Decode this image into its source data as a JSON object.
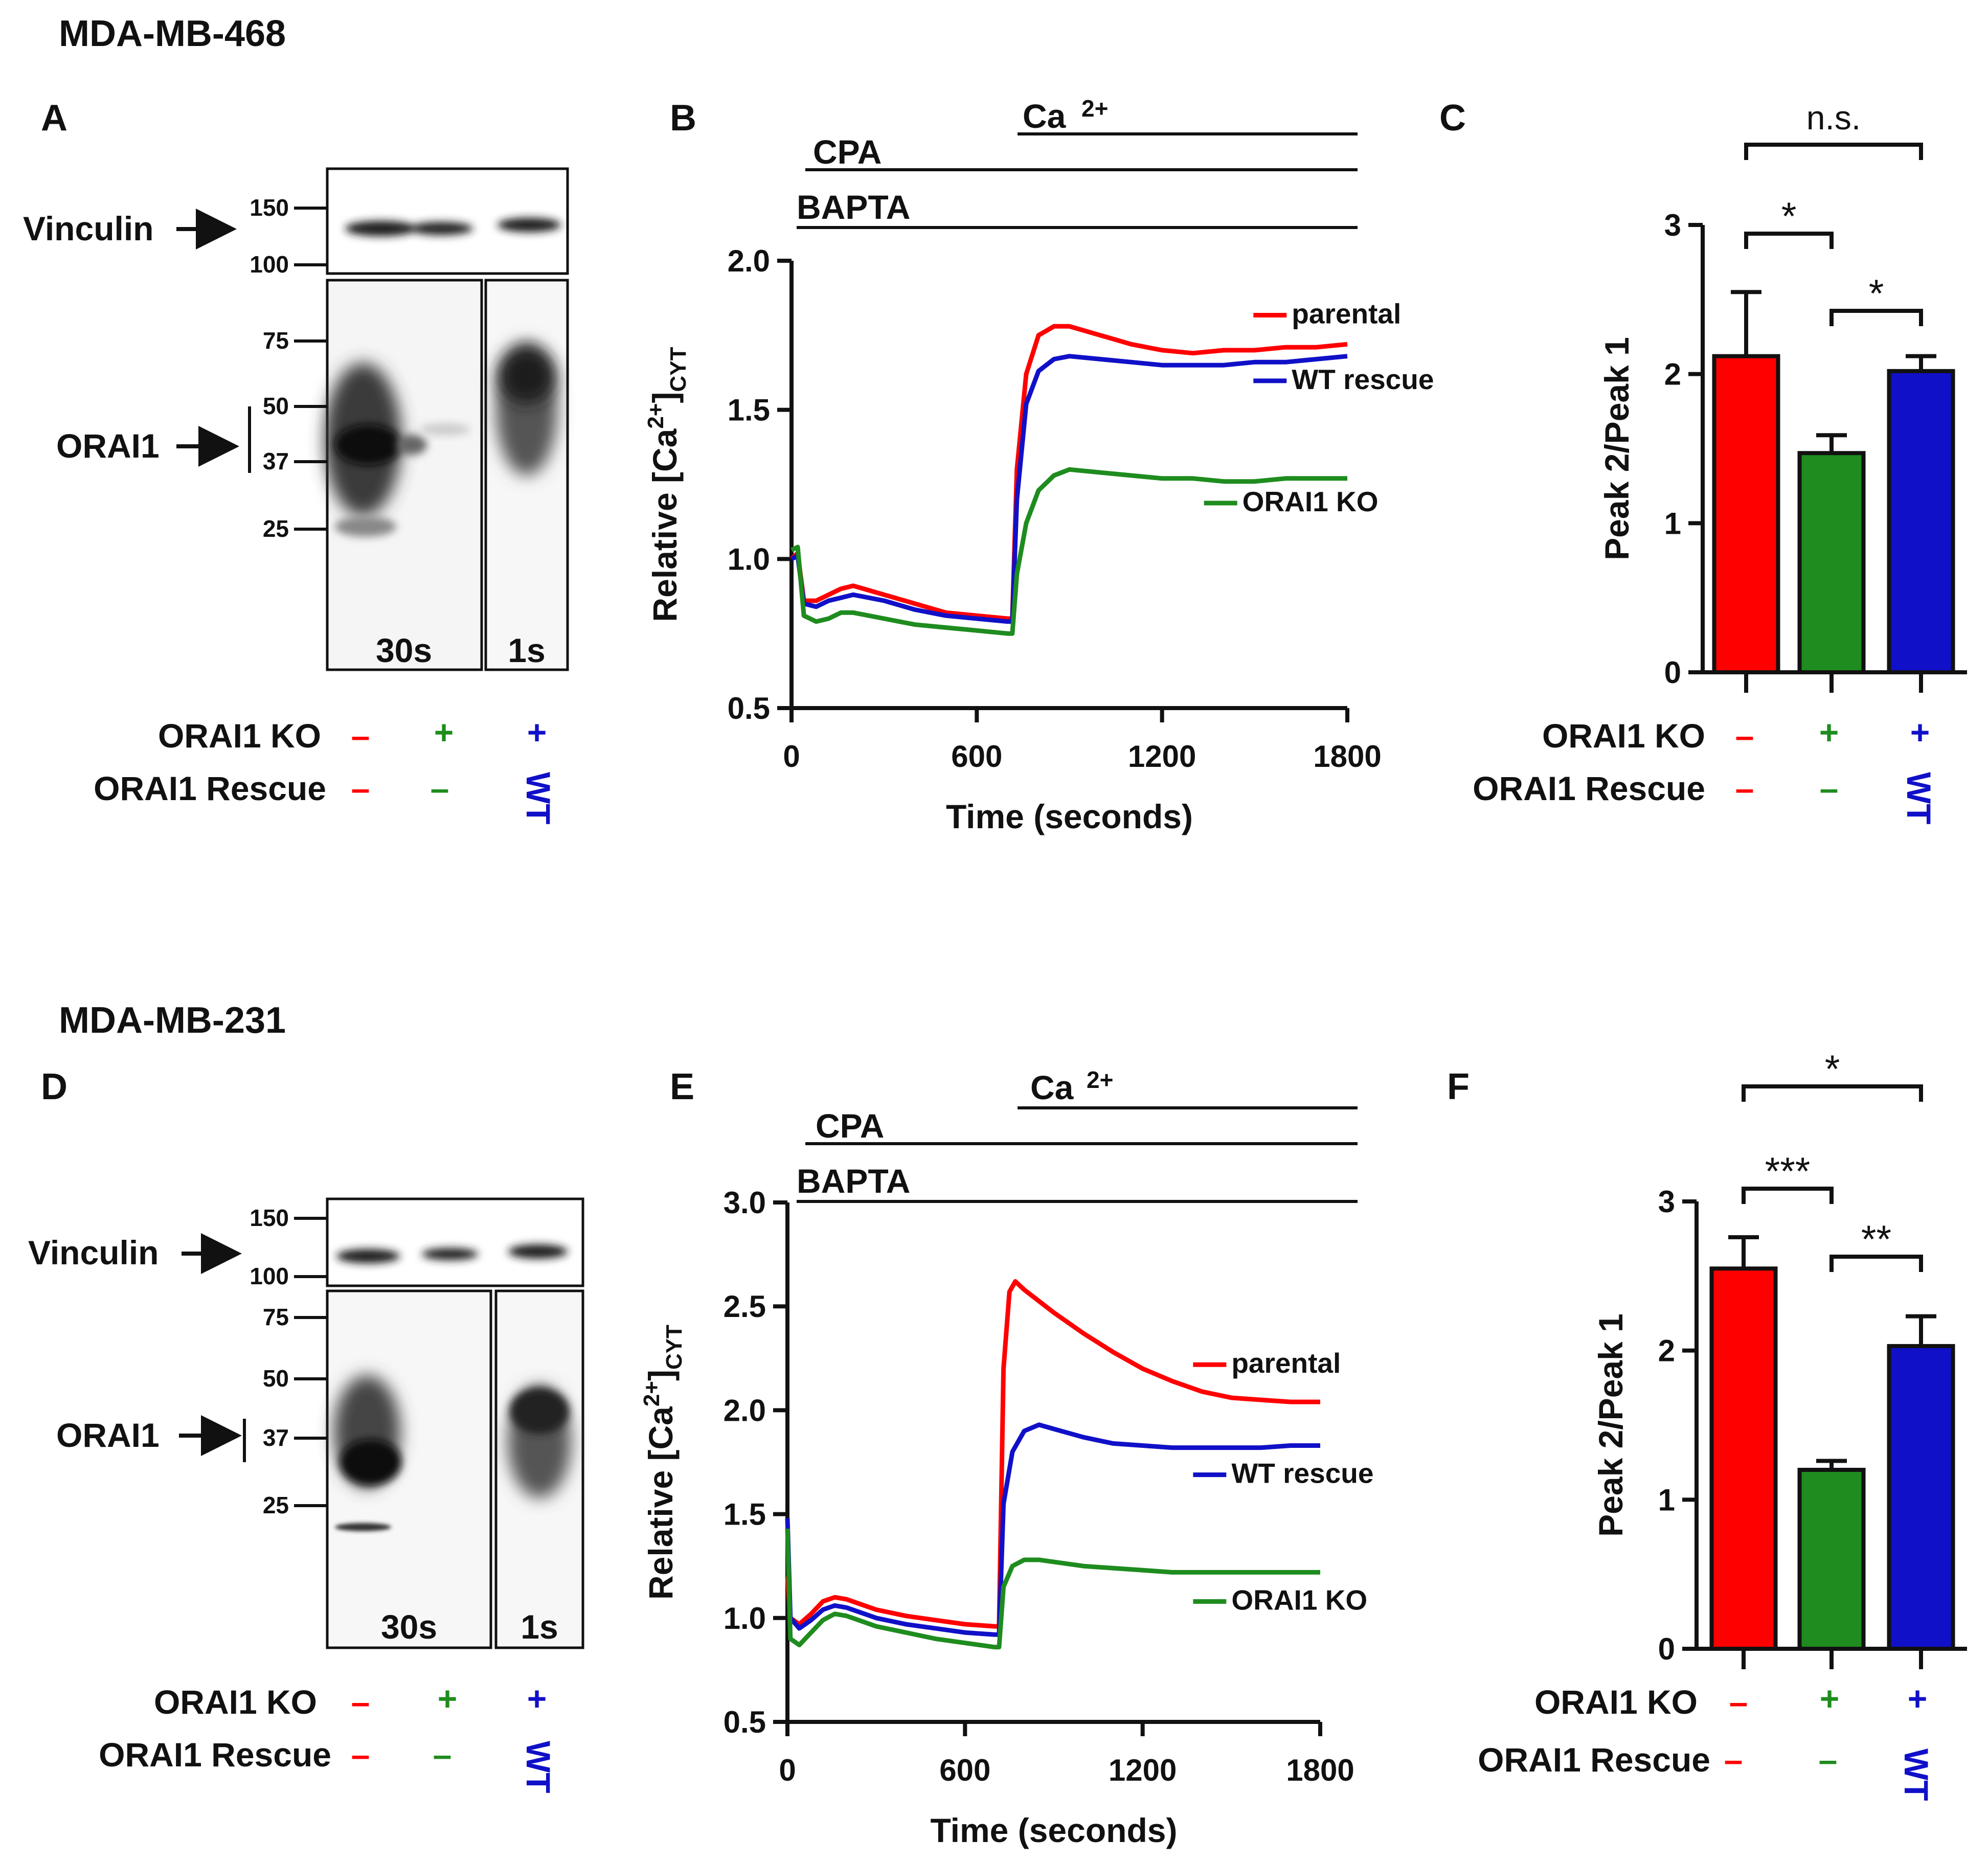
{
  "panels": {
    "top": {
      "cell_line": "MDA-MB-468",
      "blot": {
        "letter": "A",
        "proteins": [
          "Vinculin",
          "ORAI1"
        ],
        "vinculin_mw": [
          "150",
          "100"
        ],
        "orai1_mw": [
          "75",
          "50",
          "37",
          "25"
        ],
        "exposures": [
          "30s",
          "1s"
        ]
      },
      "trace": {
        "letter": "B",
        "bars": [
          "Ca",
          "CPA",
          "BAPTA"
        ],
        "ca_sup": "2+"
      },
      "bars": {
        "letter": "C"
      }
    },
    "bottom": {
      "cell_line": "MDA-MB-231",
      "blot": {
        "letter": "D",
        "proteins": [
          "Vinculin",
          "ORAI1"
        ],
        "vinculin_mw": [
          "150",
          "100"
        ],
        "orai1_mw": [
          "75",
          "50",
          "37",
          "25"
        ],
        "exposures": [
          "30s",
          "1s"
        ]
      },
      "trace": {
        "letter": "E",
        "bars": [
          "Ca",
          "CPA",
          "BAPTA"
        ],
        "ca_sup": "2+"
      },
      "bars": {
        "letter": "F"
      }
    }
  },
  "conditions": {
    "ko_label": "ORAI1 KO",
    "rescue_label": "ORAI1 Rescue",
    "ko_signs": [
      "–",
      "+",
      "+"
    ],
    "rescue_signs": [
      "–",
      "–",
      "WT"
    ]
  },
  "colors": {
    "parental": "#ff0000",
    "ko": "#1e8c1e",
    "wt": "#1010c8"
  },
  "chart_data": [
    {
      "id": "B",
      "type": "line",
      "xlabel": "Time (seconds)",
      "ylabel": "Relative [Ca2+]CYT",
      "ylabel_parts": [
        "Relative [Ca",
        "2+",
        "]",
        "CYT"
      ],
      "x_ticks": [
        "0",
        "600",
        "1200",
        "1800"
      ],
      "y_ticks": [
        "0.5",
        "1.0",
        "1.5",
        "2.0"
      ],
      "xlim": [
        0,
        1800
      ],
      "ylim": [
        0.5,
        2.0
      ],
      "series": [
        {
          "name": "parental",
          "color": "#ff0000",
          "label_at": [
            1620,
            1.79
          ],
          "points": [
            [
              0,
              1.0
            ],
            [
              20,
              1.02
            ],
            [
              40,
              0.86
            ],
            [
              80,
              0.86
            ],
            [
              120,
              0.88
            ],
            [
              160,
              0.9
            ],
            [
              200,
              0.91
            ],
            [
              300,
              0.88
            ],
            [
              400,
              0.85
            ],
            [
              500,
              0.82
            ],
            [
              600,
              0.81
            ],
            [
              700,
              0.8
            ],
            [
              715,
              0.8
            ],
            [
              730,
              1.3
            ],
            [
              760,
              1.62
            ],
            [
              800,
              1.75
            ],
            [
              850,
              1.78
            ],
            [
              900,
              1.78
            ],
            [
              1000,
              1.75
            ],
            [
              1100,
              1.72
            ],
            [
              1200,
              1.7
            ],
            [
              1300,
              1.69
            ],
            [
              1400,
              1.7
            ],
            [
              1500,
              1.7
            ],
            [
              1600,
              1.71
            ],
            [
              1700,
              1.71
            ],
            [
              1800,
              1.72
            ]
          ]
        },
        {
          "name": "WT rescue",
          "color": "#1010c8",
          "label_at": [
            1620,
            1.57
          ],
          "points": [
            [
              0,
              1.0
            ],
            [
              20,
              1.01
            ],
            [
              40,
              0.85
            ],
            [
              80,
              0.84
            ],
            [
              120,
              0.86
            ],
            [
              160,
              0.87
            ],
            [
              200,
              0.88
            ],
            [
              300,
              0.86
            ],
            [
              400,
              0.83
            ],
            [
              500,
              0.81
            ],
            [
              600,
              0.8
            ],
            [
              700,
              0.79
            ],
            [
              715,
              0.79
            ],
            [
              730,
              1.2
            ],
            [
              760,
              1.52
            ],
            [
              800,
              1.63
            ],
            [
              850,
              1.67
            ],
            [
              900,
              1.68
            ],
            [
              1000,
              1.67
            ],
            [
              1100,
              1.66
            ],
            [
              1200,
              1.65
            ],
            [
              1300,
              1.65
            ],
            [
              1400,
              1.65
            ],
            [
              1500,
              1.66
            ],
            [
              1600,
              1.66
            ],
            [
              1700,
              1.67
            ],
            [
              1800,
              1.68
            ]
          ]
        },
        {
          "name": "ORAI1 KO",
          "color": "#1e8c1e",
          "label_at": [
            1460,
            1.16
          ],
          "points": [
            [
              0,
              1.03
            ],
            [
              20,
              1.04
            ],
            [
              40,
              0.81
            ],
            [
              80,
              0.79
            ],
            [
              120,
              0.8
            ],
            [
              160,
              0.82
            ],
            [
              200,
              0.82
            ],
            [
              300,
              0.8
            ],
            [
              400,
              0.78
            ],
            [
              500,
              0.77
            ],
            [
              600,
              0.76
            ],
            [
              700,
              0.75
            ],
            [
              715,
              0.75
            ],
            [
              730,
              0.95
            ],
            [
              760,
              1.12
            ],
            [
              800,
              1.23
            ],
            [
              850,
              1.28
            ],
            [
              900,
              1.3
            ],
            [
              1000,
              1.29
            ],
            [
              1100,
              1.28
            ],
            [
              1200,
              1.27
            ],
            [
              1300,
              1.27
            ],
            [
              1400,
              1.26
            ],
            [
              1500,
              1.26
            ],
            [
              1600,
              1.27
            ],
            [
              1700,
              1.27
            ],
            [
              1800,
              1.27
            ]
          ]
        }
      ]
    },
    {
      "id": "C",
      "type": "bar",
      "ylabel": "Peak 2/Peak 1",
      "y_ticks": [
        "0",
        "1",
        "2",
        "3"
      ],
      "ylim": [
        0,
        3
      ],
      "categories": [
        "parental",
        "ORAI1 KO",
        "WT rescue"
      ],
      "values": [
        2.12,
        1.47,
        2.02
      ],
      "errors": [
        0.43,
        0.12,
        0.1
      ],
      "colors": [
        "#ff0000",
        "#1e8c1e",
        "#1010c8"
      ],
      "significance": [
        {
          "from": 0,
          "to": 2,
          "label": "n.s."
        },
        {
          "from": 0,
          "to": 1,
          "label": "*"
        },
        {
          "from": 1,
          "to": 2,
          "label": "*"
        }
      ]
    },
    {
      "id": "E",
      "type": "line",
      "xlabel": "Time (seconds)",
      "ylabel": "Relative [Ca2+]CYT",
      "ylabel_parts": [
        "Relative [Ca",
        "2+",
        "]",
        "CYT"
      ],
      "x_ticks": [
        "0",
        "600",
        "1200",
        "1800"
      ],
      "y_ticks": [
        "0.5",
        "1.0",
        "1.5",
        "2.0",
        "2.5",
        "3.0"
      ],
      "xlim": [
        0,
        1800
      ],
      "ylim": [
        0.5,
        3.0
      ],
      "series": [
        {
          "name": "parental",
          "color": "#ff0000",
          "label_at": [
            1500,
            2.18
          ],
          "points": [
            [
              0,
              1.2
            ],
            [
              10,
              1.0
            ],
            [
              40,
              0.97
            ],
            [
              80,
              1.02
            ],
            [
              120,
              1.08
            ],
            [
              160,
              1.1
            ],
            [
              200,
              1.09
            ],
            [
              300,
              1.04
            ],
            [
              400,
              1.01
            ],
            [
              500,
              0.99
            ],
            [
              600,
              0.97
            ],
            [
              700,
              0.96
            ],
            [
              715,
              0.96
            ],
            [
              730,
              2.2
            ],
            [
              750,
              2.57
            ],
            [
              770,
              2.62
            ],
            [
              800,
              2.58
            ],
            [
              900,
              2.47
            ],
            [
              1000,
              2.37
            ],
            [
              1100,
              2.28
            ],
            [
              1200,
              2.2
            ],
            [
              1300,
              2.14
            ],
            [
              1400,
              2.09
            ],
            [
              1500,
              2.06
            ],
            [
              1600,
              2.05
            ],
            [
              1700,
              2.04
            ],
            [
              1800,
              2.04
            ]
          ]
        },
        {
          "name": "WT rescue",
          "color": "#1010c8",
          "label_at": [
            1500,
            1.65
          ],
          "points": [
            [
              0,
              1.48
            ],
            [
              10,
              1.0
            ],
            [
              40,
              0.95
            ],
            [
              80,
              0.99
            ],
            [
              120,
              1.04
            ],
            [
              160,
              1.06
            ],
            [
              200,
              1.05
            ],
            [
              300,
              1.0
            ],
            [
              400,
              0.97
            ],
            [
              500,
              0.95
            ],
            [
              600,
              0.93
            ],
            [
              700,
              0.92
            ],
            [
              715,
              0.92
            ],
            [
              730,
              1.55
            ],
            [
              760,
              1.8
            ],
            [
              800,
              1.9
            ],
            [
              850,
              1.93
            ],
            [
              900,
              1.91
            ],
            [
              1000,
              1.87
            ],
            [
              1100,
              1.84
            ],
            [
              1200,
              1.83
            ],
            [
              1300,
              1.82
            ],
            [
              1400,
              1.82
            ],
            [
              1500,
              1.82
            ],
            [
              1600,
              1.82
            ],
            [
              1700,
              1.83
            ],
            [
              1800,
              1.83
            ]
          ]
        },
        {
          "name": "ORAI1 KO",
          "color": "#1e8c1e",
          "label_at": [
            1500,
            1.04
          ],
          "points": [
            [
              0,
              1.43
            ],
            [
              10,
              0.9
            ],
            [
              40,
              0.87
            ],
            [
              80,
              0.93
            ],
            [
              120,
              0.99
            ],
            [
              160,
              1.02
            ],
            [
              200,
              1.01
            ],
            [
              300,
              0.96
            ],
            [
              400,
              0.93
            ],
            [
              500,
              0.9
            ],
            [
              600,
              0.88
            ],
            [
              700,
              0.86
            ],
            [
              715,
              0.86
            ],
            [
              730,
              1.15
            ],
            [
              760,
              1.25
            ],
            [
              800,
              1.28
            ],
            [
              850,
              1.28
            ],
            [
              900,
              1.27
            ],
            [
              1000,
              1.25
            ],
            [
              1100,
              1.24
            ],
            [
              1200,
              1.23
            ],
            [
              1300,
              1.22
            ],
            [
              1400,
              1.22
            ],
            [
              1500,
              1.22
            ],
            [
              1600,
              1.22
            ],
            [
              1700,
              1.22
            ],
            [
              1800,
              1.22
            ]
          ]
        }
      ]
    },
    {
      "id": "F",
      "type": "bar",
      "ylabel": "Peak 2/Peak 1",
      "y_ticks": [
        "0",
        "1",
        "2",
        "3"
      ],
      "ylim": [
        0,
        3
      ],
      "categories": [
        "parental",
        "ORAI1 KO",
        "WT rescue"
      ],
      "values": [
        2.55,
        1.2,
        2.03
      ],
      "errors": [
        0.21,
        0.06,
        0.2
      ],
      "colors": [
        "#ff0000",
        "#1e8c1e",
        "#1010c8"
      ],
      "significance": [
        {
          "from": 0,
          "to": 2,
          "label": "*"
        },
        {
          "from": 0,
          "to": 1,
          "label": "***"
        },
        {
          "from": 1,
          "to": 2,
          "label": "**"
        }
      ]
    }
  ]
}
